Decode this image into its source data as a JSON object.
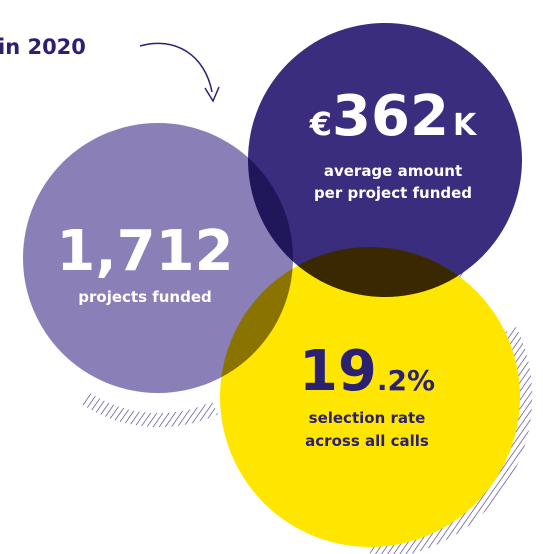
{
  "header": {
    "year_label": "in 2020"
  },
  "stats": [
    {
      "prefix": "€",
      "number": "362",
      "suffix": "K",
      "caption": [
        "average amount",
        "per project funded"
      ]
    },
    {
      "number": "1,712",
      "caption": [
        "projects funded"
      ]
    },
    {
      "number": "19",
      "suffix": ".2%",
      "caption": [
        "selection rate",
        "across all calls"
      ]
    }
  ]
}
